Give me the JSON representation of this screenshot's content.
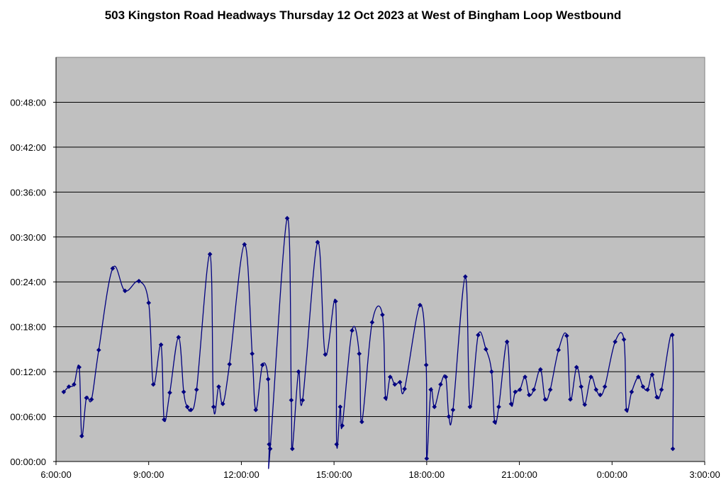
{
  "chart_data": {
    "type": "line",
    "title": "503 Kingston Road Headways Thursday 12 Oct 2023 at West of Bingham Loop Westbound",
    "xlabel": "",
    "ylabel": "",
    "x_unit": "hours since 6:00:00 (Thursday)",
    "y_unit": "minutes",
    "xlim_labels": [
      "6:00:00",
      "3:00:00"
    ],
    "xlim": [
      6,
      27
    ],
    "ylim": [
      0,
      54
    ],
    "x_ticks": [
      "6:00:00",
      "9:00:00",
      "12:00:00",
      "15:00:00",
      "18:00:00",
      "21:00:00",
      "0:00:00",
      "3:00:00"
    ],
    "y_ticks": [
      "00:00:00",
      "00:06:00",
      "00:12:00",
      "00:18:00",
      "00:24:00",
      "00:30:00",
      "00:36:00",
      "00:42:00",
      "00:48:00"
    ],
    "grid": "horizontal",
    "legend": "none",
    "marker": "diamond",
    "series": [
      {
        "name": "",
        "color": "#000080",
        "points": [
          [
            "6:15",
            9.3
          ],
          [
            "6:25",
            10.0
          ],
          [
            "6:35",
            10.3
          ],
          [
            "6:45",
            12.6
          ],
          [
            "6:50",
            3.4
          ],
          [
            "6:59",
            8.5
          ],
          [
            "7:09",
            8.3
          ],
          [
            "7:23",
            14.9
          ],
          [
            "7:50",
            25.8
          ],
          [
            "8:14",
            22.8
          ],
          [
            "8:41",
            24.1
          ],
          [
            "9:00",
            21.2
          ],
          [
            "9:09",
            10.3
          ],
          [
            "9:24",
            15.6
          ],
          [
            "9:30",
            5.6
          ],
          [
            "9:41",
            9.2
          ],
          [
            "9:58",
            16.6
          ],
          [
            "10:08",
            9.3
          ],
          [
            "10:15",
            7.3
          ],
          [
            "10:22",
            6.9
          ],
          [
            "10:33",
            9.6
          ],
          [
            "10:59",
            27.7
          ],
          [
            "11:06",
            7.3
          ],
          [
            "11:16",
            10.0
          ],
          [
            "11:24",
            7.7
          ],
          [
            "11:37",
            13.0
          ],
          [
            "12:06",
            29.0
          ],
          [
            "12:21",
            14.4
          ],
          [
            "12:28",
            6.9
          ],
          [
            "12:41",
            12.9
          ],
          [
            "12:52",
            11.0
          ],
          [
            "12:54",
            2.3
          ],
          [
            "12:56",
            1.7
          ],
          [
            "13:29",
            32.5
          ],
          [
            "13:37",
            8.2
          ],
          [
            "13:39",
            1.7
          ],
          [
            "13:51",
            12.0
          ],
          [
            "13:59",
            8.2
          ],
          [
            "14:28",
            29.3
          ],
          [
            "14:43",
            14.3
          ],
          [
            "15:03",
            21.4
          ],
          [
            "15:05",
            2.3
          ],
          [
            "15:12",
            7.3
          ],
          [
            "15:16",
            4.8
          ],
          [
            "15:35",
            17.5
          ],
          [
            "15:49",
            14.4
          ],
          [
            "15:54",
            5.3
          ],
          [
            "16:14",
            18.6
          ],
          [
            "16:34",
            19.6
          ],
          [
            "16:40",
            8.5
          ],
          [
            "16:49",
            11.3
          ],
          [
            "16:58",
            10.3
          ],
          [
            "17:08",
            10.6
          ],
          [
            "17:17",
            9.7
          ],
          [
            "17:47",
            20.9
          ],
          [
            "17:59",
            12.9
          ],
          [
            "18:00",
            0.4
          ],
          [
            "18:08",
            9.6
          ],
          [
            "18:15",
            7.3
          ],
          [
            "18:27",
            10.3
          ],
          [
            "18:37",
            11.3
          ],
          [
            "18:43",
            6.0
          ],
          [
            "18:51",
            6.9
          ],
          [
            "19:15",
            24.7
          ],
          [
            "19:24",
            7.3
          ],
          [
            "19:40",
            16.9
          ],
          [
            "19:55",
            15.0
          ],
          [
            "20:06",
            12.0
          ],
          [
            "20:12",
            5.3
          ],
          [
            "20:20",
            7.3
          ],
          [
            "20:36",
            16.0
          ],
          [
            "20:44",
            7.7
          ],
          [
            "20:52",
            9.3
          ],
          [
            "21:01",
            9.6
          ],
          [
            "21:11",
            11.3
          ],
          [
            "21:19",
            8.9
          ],
          [
            "21:28",
            9.6
          ],
          [
            "21:41",
            12.3
          ],
          [
            "21:50",
            8.3
          ],
          [
            "22:00",
            9.6
          ],
          [
            "22:16",
            14.9
          ],
          [
            "22:32",
            16.8
          ],
          [
            "22:39",
            8.3
          ],
          [
            "22:51",
            12.6
          ],
          [
            "23:00",
            10.0
          ],
          [
            "23:07",
            7.6
          ],
          [
            "23:19",
            11.3
          ],
          [
            "23:29",
            9.6
          ],
          [
            "23:37",
            8.9
          ],
          [
            "23:46",
            10.0
          ],
          [
            "0:06",
            16.0
          ],
          [
            "0:23",
            16.3
          ],
          [
            "0:28",
            6.9
          ],
          [
            "0:38",
            9.3
          ],
          [
            "0:51",
            11.3
          ],
          [
            "1:00",
            10.0
          ],
          [
            "1:09",
            9.6
          ],
          [
            "1:18",
            11.6
          ],
          [
            "1:27",
            8.6
          ],
          [
            "1:36",
            9.6
          ],
          [
            "1:57",
            16.9
          ],
          [
            "1:58",
            1.7
          ]
        ]
      }
    ]
  }
}
